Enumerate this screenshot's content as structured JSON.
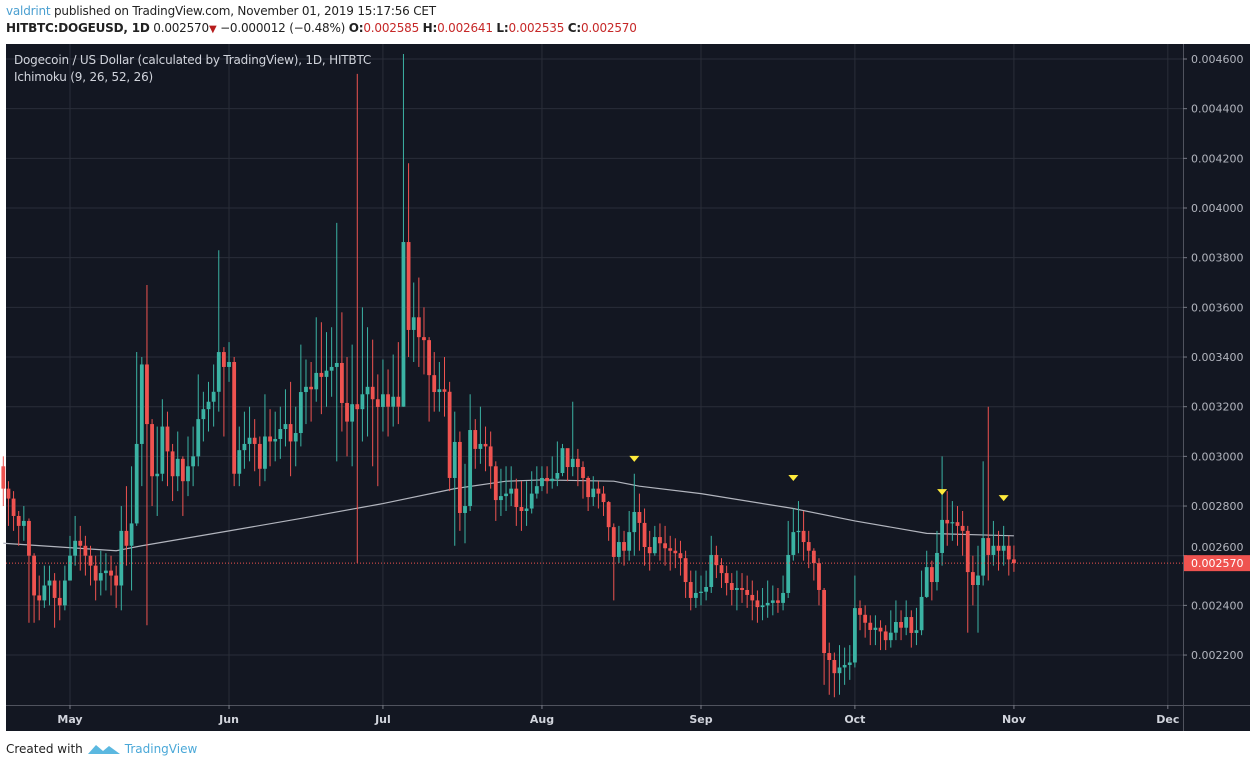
{
  "header": {
    "author": "valdrint",
    "published_text": "published on TradingView.com, November 01, 2019 15:17:56 CET",
    "symbol": "HITBTC:DOGEUSD, 1D",
    "last": "0.002570",
    "change": "−0.000012 (−0.48%)",
    "o_label": "O:",
    "o": "0.002585",
    "h_label": "H:",
    "h": "0.002641",
    "l_label": "L:",
    "l": "0.002535",
    "c_label": "C:",
    "c": "0.002570",
    "direction_icon": "down-triangle"
  },
  "legend": {
    "title": "Dogecoin / US Dollar (calculated by TradingView), 1D, HITBTC",
    "indicator": "Ichimoku (9, 26, 52, 26)"
  },
  "footer": {
    "created_with": "Created with",
    "brand": "TradingView"
  },
  "colors": {
    "background": "#131722",
    "grid": "#2a2e39",
    "up": "#3bb3a4",
    "down": "#ef5350",
    "line": "#b2b5be",
    "marker": "#ffeb3b",
    "price_label": "#ef5350"
  },
  "chart_data": {
    "type": "candlestick",
    "start_date": "2019-04-18",
    "first_open": 0.00296,
    "close": [
      0.00287,
      0.00283,
      0.00276,
      0.00272,
      0.00274,
      0.0026,
      0.00244,
      0.00242,
      0.00248,
      0.0025,
      0.00243,
      0.0024,
      0.0025,
      0.0026,
      0.00266,
      0.00264,
      0.0026,
      0.00256,
      0.0025,
      0.00253,
      0.00254,
      0.00252,
      0.00248,
      0.0027,
      0.00264,
      0.00273,
      0.00305,
      0.00337,
      0.00313,
      0.00292,
      0.00293,
      0.00312,
      0.00302,
      0.00292,
      0.00299,
      0.0029,
      0.00296,
      0.003,
      0.00315,
      0.00319,
      0.00322,
      0.00326,
      0.00342,
      0.00336,
      0.00338,
      0.00293,
      0.003025,
      0.00305,
      0.003075,
      0.00305,
      0.00295,
      0.00308,
      0.00306,
      0.00307,
      0.00311,
      0.00313,
      0.00306,
      0.003094,
      0.003259,
      0.00328,
      0.00327,
      0.003336,
      0.00332,
      0.003345,
      0.00336,
      0.003376,
      0.003215,
      0.00314,
      0.00321,
      0.00319,
      0.00325,
      0.00328,
      0.00323,
      0.003199,
      0.00325,
      0.0032,
      0.00324,
      0.0032,
      0.003863,
      0.003509,
      0.00356,
      0.00348,
      0.003468,
      0.003327,
      0.003259,
      0.00327,
      0.00326,
      0.002913,
      0.003058,
      0.002772,
      0.0028,
      0.003106,
      0.00303,
      0.00305,
      0.00304,
      0.00296,
      0.002824,
      0.00284,
      0.00285,
      0.00287,
      0.002796,
      0.00278,
      0.00279,
      0.00285,
      0.00288,
      0.002913,
      0.0029,
      0.00291,
      0.002933,
      0.003033,
      0.002957,
      0.00299,
      0.002957,
      0.002913,
      0.002836,
      0.00287,
      0.00285,
      0.002816,
      0.002715,
      0.002595,
      0.002655,
      0.00262,
      0.002695,
      0.002776,
      0.002732,
      0.002635,
      0.00261,
      0.002675,
      0.00265,
      0.00263,
      0.00262,
      0.00261,
      0.00259,
      0.002494,
      0.00243,
      0.00245,
      0.002455,
      0.002474,
      0.002603,
      0.002562,
      0.00253,
      0.00249,
      0.002462,
      0.00247,
      0.002462,
      0.002442,
      0.00242,
      0.002393,
      0.0024,
      0.00241,
      0.00242,
      0.00241,
      0.00245,
      0.002603,
      0.002695,
      0.0027,
      0.002655,
      0.00262,
      0.00257,
      0.002462,
      0.002208,
      0.00218,
      0.002127,
      0.00215,
      0.00216,
      0.00217,
      0.002389,
      0.002362,
      0.00233,
      0.002301,
      0.00231,
      0.002295,
      0.00226,
      0.00229,
      0.002333,
      0.00231,
      0.002353,
      0.002289,
      0.0023,
      0.002434,
      0.002554,
      0.002494,
      0.002611,
      0.002744,
      0.00273,
      0.002735,
      0.00272,
      0.0027,
      0.002534,
      0.002482,
      0.00252,
      0.002671,
      0.002603,
      0.00264,
      0.00262,
      0.00264,
      0.002585,
      0.00257
    ],
    "high": [
      0.003,
      0.0029,
      0.00286,
      0.00278,
      0.0028,
      0.00275,
      0.00261,
      0.00252,
      0.00256,
      0.00256,
      0.00253,
      0.0025,
      0.00256,
      0.00268,
      0.00276,
      0.00272,
      0.00268,
      0.00264,
      0.0026,
      0.00262,
      0.00261,
      0.0026,
      0.00256,
      0.0028,
      0.00288,
      0.00296,
      0.00342,
      0.0034,
      0.00369,
      0.00315,
      0.00312,
      0.00323,
      0.00318,
      0.00305,
      0.0031,
      0.003,
      0.00308,
      0.00312,
      0.00333,
      0.00326,
      0.0033,
      0.00337,
      0.00383,
      0.00344,
      0.00346,
      0.0034,
      0.00312,
      0.00318,
      0.0032,
      0.00315,
      0.00308,
      0.00325,
      0.00319,
      0.00318,
      0.0032,
      0.00327,
      0.0033,
      0.0032,
      0.00345,
      0.00339,
      0.00338,
      0.00356,
      0.00354,
      0.0035,
      0.00352,
      0.00394,
      0.00358,
      0.0034,
      0.00345,
      0.00454,
      0.0036,
      0.00352,
      0.00347,
      0.00333,
      0.00339,
      0.00335,
      0.00341,
      0.00346,
      0.00462,
      0.00418,
      0.0037,
      0.00372,
      0.0036,
      0.00348,
      0.00342,
      0.00338,
      0.0034,
      0.0033,
      0.00318,
      0.0031,
      0.00297,
      0.00325,
      0.00315,
      0.0032,
      0.00312,
      0.0031,
      0.00298,
      0.00295,
      0.00296,
      0.00296,
      0.00291,
      0.0029,
      0.0029,
      0.00294,
      0.00296,
      0.00296,
      0.00296,
      0.003,
      0.00306,
      0.00305,
      0.00303,
      0.00322,
      0.00303,
      0.00298,
      0.00292,
      0.00292,
      0.0029,
      0.00288,
      0.00282,
      0.00273,
      0.00272,
      0.0027,
      0.00278,
      0.00293,
      0.00285,
      0.00279,
      0.0027,
      0.00272,
      0.00273,
      0.00272,
      0.00268,
      0.00267,
      0.00266,
      0.00262,
      0.00254,
      0.00254,
      0.00252,
      0.00254,
      0.00268,
      0.00264,
      0.00259,
      0.00256,
      0.00253,
      0.00254,
      0.00253,
      0.00252,
      0.0025,
      0.00246,
      0.00247,
      0.0025,
      0.00248,
      0.00247,
      0.00252,
      0.00274,
      0.00279,
      0.00282,
      0.00278,
      0.0027,
      0.00263,
      0.00259,
      0.00247,
      0.00225,
      0.00221,
      0.00224,
      0.00223,
      0.00224,
      0.00252,
      0.00242,
      0.0024,
      0.00236,
      0.00236,
      0.00234,
      0.00232,
      0.00238,
      0.00242,
      0.00238,
      0.00242,
      0.00238,
      0.00239,
      0.00254,
      0.00262,
      0.00258,
      0.0027,
      0.003,
      0.00286,
      0.00282,
      0.0028,
      0.00278,
      0.00272,
      0.0026,
      0.00264,
      0.00298,
      0.0032,
      0.00274,
      0.0027,
      0.00272,
      0.00268,
      0.002641
    ],
    "low": [
      0.0028,
      0.00272,
      0.0027,
      0.00264,
      0.00266,
      0.00233,
      0.00233,
      0.00234,
      0.00239,
      0.0024,
      0.00231,
      0.00234,
      0.00238,
      0.0025,
      0.00256,
      0.00254,
      0.00252,
      0.00248,
      0.00242,
      0.00244,
      0.00246,
      0.00244,
      0.00239,
      0.00238,
      0.00256,
      0.00246,
      0.00272,
      0.00288,
      0.00232,
      0.0028,
      0.00276,
      0.0029,
      0.00288,
      0.00282,
      0.00286,
      0.00276,
      0.00284,
      0.00288,
      0.00296,
      0.00306,
      0.0031,
      0.00312,
      0.00318,
      0.00308,
      0.0033,
      0.00288,
      0.00288,
      0.00295,
      0.00298,
      0.00294,
      0.00288,
      0.0029,
      0.00296,
      0.00298,
      0.00299,
      0.00304,
      0.00292,
      0.00296,
      0.00304,
      0.00313,
      0.00314,
      0.00322,
      0.00317,
      0.0032,
      0.00324,
      0.00298,
      0.0031,
      0.003,
      0.00296,
      0.00257,
      0.00306,
      0.00308,
      0.00296,
      0.00288,
      0.0031,
      0.00308,
      0.00312,
      0.00313,
      0.0032,
      0.0034,
      0.00338,
      0.00336,
      0.00333,
      0.00314,
      0.00318,
      0.00318,
      0.00316,
      0.00286,
      0.00264,
      0.0027,
      0.00265,
      0.00278,
      0.00295,
      0.00297,
      0.00294,
      0.00287,
      0.00274,
      0.00276,
      0.00278,
      0.0028,
      0.00272,
      0.0027,
      0.00272,
      0.00277,
      0.00283,
      0.00286,
      0.00285,
      0.00287,
      0.00288,
      0.00292,
      0.0029,
      0.00292,
      0.00288,
      0.00283,
      0.00278,
      0.0028,
      0.00279,
      0.00276,
      0.00266,
      0.00242,
      0.00257,
      0.00256,
      0.00258,
      0.0026,
      0.00262,
      0.00256,
      0.00254,
      0.0026,
      0.00258,
      0.00256,
      0.00254,
      0.00255,
      0.00252,
      0.00243,
      0.00238,
      0.00239,
      0.0024,
      0.00242,
      0.00245,
      0.00251,
      0.00247,
      0.00244,
      0.0024,
      0.00238,
      0.00241,
      0.00239,
      0.00234,
      0.00233,
      0.00234,
      0.00235,
      0.00236,
      0.00237,
      0.00238,
      0.00243,
      0.00258,
      0.00261,
      0.00258,
      0.00255,
      0.0025,
      0.0024,
      0.00208,
      0.00204,
      0.00203,
      0.00204,
      0.00208,
      0.0021,
      0.00215,
      0.0023,
      0.00227,
      0.00224,
      0.00224,
      0.00222,
      0.00222,
      0.00223,
      0.00226,
      0.00226,
      0.00228,
      0.00223,
      0.00224,
      0.00228,
      0.00243,
      0.00242,
      0.00246,
      0.00256,
      0.00264,
      0.00266,
      0.00264,
      0.0026,
      0.00229,
      0.0024,
      0.00229,
      0.00248,
      0.0025,
      0.00256,
      0.00254,
      0.00256,
      0.00252,
      0.002535
    ],
    "series": [
      {
        "name": "Ichimoku (9, 26, 52, 26)",
        "type": "line",
        "points": [
          [
            "2019-04-18",
            0.00265
          ],
          [
            "2019-05-10",
            0.00262
          ],
          [
            "2019-05-15",
            0.00264
          ],
          [
            "2019-06-01",
            0.0027
          ],
          [
            "2019-06-15",
            0.00275
          ],
          [
            "2019-07-01",
            0.00281
          ],
          [
            "2019-07-15",
            0.00287
          ],
          [
            "2019-07-25",
            0.0029
          ],
          [
            "2019-08-01",
            0.002905
          ],
          [
            "2019-08-15",
            0.0029
          ],
          [
            "2019-08-20",
            0.00288
          ],
          [
            "2019-09-01",
            0.00285
          ],
          [
            "2019-09-19",
            0.00279
          ],
          [
            "2019-10-01",
            0.00274
          ],
          [
            "2019-10-15",
            0.00269
          ],
          [
            "2019-11-01",
            0.00268
          ]
        ]
      }
    ],
    "markers": [
      {
        "date": "2019-08-19",
        "price": 0.00299,
        "shape": "down-triangle"
      },
      {
        "date": "2019-09-19",
        "price": 0.002913,
        "shape": "down-triangle"
      },
      {
        "date": "2019-10-18",
        "price": 0.002856,
        "shape": "down-triangle"
      },
      {
        "date": "2019-10-30",
        "price": 0.002832,
        "shape": "down-triangle"
      }
    ],
    "current_price": 0.00257,
    "current_price_label": "0.002570",
    "ylim": [
      0.00203,
      0.00465
    ],
    "y_ticks": [
      0.0022,
      0.0024,
      0.0026,
      0.0028,
      0.003,
      0.0032,
      0.0034,
      0.0036,
      0.0038,
      0.004,
      0.0042,
      0.0044,
      0.0046
    ],
    "y_tick_labels": [
      "0.002200",
      "0.002400",
      "0.002600",
      "0.002800",
      "0.003000",
      "0.003200",
      "0.003400",
      "0.003600",
      "0.003800",
      "0.004000",
      "0.004200",
      "0.004400",
      "0.004600"
    ],
    "x_ticks": [
      "2019-05-01",
      "2019-06-01",
      "2019-07-01",
      "2019-08-01",
      "2019-09-01",
      "2019-10-01",
      "2019-11-01",
      "2019-12-01"
    ],
    "x_tick_labels": [
      "May",
      "Jun",
      "Jul",
      "Aug",
      "Sep",
      "Oct",
      "Nov",
      "Dec"
    ],
    "grid": true
  }
}
